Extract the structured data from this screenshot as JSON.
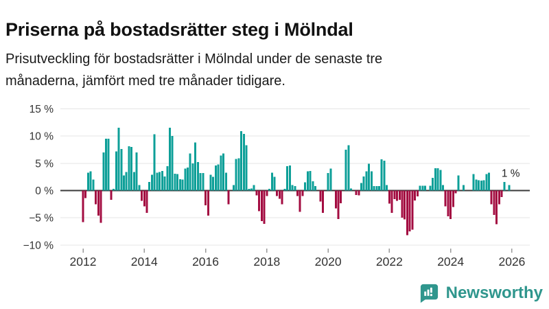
{
  "header": {
    "title": "Priserna på bostadsrätter steg i Mölndal",
    "subtitle_line1": "Prisutveckling för bostadsrätter i Mölndal under de senaste tre",
    "subtitle_line2": "månaderna, jämfört med tre månader tidigare."
  },
  "chart_data": {
    "type": "bar",
    "unit": "%",
    "start_period": "2012-01",
    "frequency": "monthly",
    "ylim": [
      -10,
      15
    ],
    "grid": true,
    "y_ticks": [
      {
        "value": 15,
        "label": "15 %"
      },
      {
        "value": 10,
        "label": "10 %"
      },
      {
        "value": 5,
        "label": "5 %"
      },
      {
        "value": 0,
        "label": "0 %"
      },
      {
        "value": -5,
        "label": "−5 %"
      },
      {
        "value": -10,
        "label": "−10 %"
      }
    ],
    "x_ticks": [
      {
        "year": 2012,
        "label": "2012"
      },
      {
        "year": 2014,
        "label": "2014"
      },
      {
        "year": 2016,
        "label": "2016"
      },
      {
        "year": 2018,
        "label": "2018"
      },
      {
        "year": 2020,
        "label": "2020"
      },
      {
        "year": 2022,
        "label": "2022"
      },
      {
        "year": 2024,
        "label": "2024"
      },
      {
        "year": 2026,
        "label": "2026"
      }
    ],
    "values": [
      -5.8,
      -1.4,
      3.3,
      3.5,
      2.0,
      -2.5,
      -4.6,
      -5.9,
      7.0,
      9.5,
      9.5,
      -1.7,
      0.3,
      7.2,
      11.5,
      7.6,
      2.8,
      3.4,
      8.1,
      8.0,
      3.4,
      7.0,
      1.0,
      -1.9,
      -2.9,
      -4.1,
      1.6,
      2.9,
      10.3,
      3.3,
      3.4,
      3.6,
      2.6,
      4.5,
      11.5,
      10.0,
      3.1,
      3.0,
      2.1,
      2.0,
      4.0,
      4.2,
      6.8,
      5.0,
      8.8,
      5.2,
      3.2,
      3.2,
      -2.7,
      -4.6,
      2.9,
      2.5,
      4.6,
      4.8,
      6.4,
      6.8,
      3.3,
      -2.5,
      0,
      1.0,
      5.8,
      5.9,
      10.9,
      10.4,
      8.3,
      0.3,
      0.4,
      1.0,
      -0.9,
      -3.8,
      -5.6,
      -6.1,
      -1.0,
      0.3,
      3.3,
      2.5,
      -1.0,
      -1.5,
      -2.5,
      0.3,
      4.5,
      4.6,
      1.0,
      0.8,
      -1.0,
      -3.9,
      -1.0,
      1.5,
      3.5,
      3.6,
      1.7,
      0.8,
      0,
      -2.0,
      -4.1,
      0,
      3.2,
      4.0,
      0,
      -3.3,
      -5.2,
      -2.3,
      0,
      7.5,
      8.3,
      0.4,
      0,
      -0.8,
      -0.9,
      1.4,
      2.6,
      3.5,
      4.9,
      3.5,
      0.8,
      0.8,
      0.8,
      5.7,
      5.5,
      1.0,
      -2.4,
      -4.1,
      -1.6,
      -1.9,
      -1.7,
      -5.0,
      -5.3,
      -8.2,
      -7.5,
      -7.2,
      -1.8,
      -1.1,
      0.9,
      0.9,
      0.9,
      0,
      0.9,
      2.3,
      4.1,
      4.1,
      3.8,
      1.0,
      -2.9,
      -4.7,
      -5.2,
      -3.0,
      -0.5,
      2.8,
      0,
      1.0,
      0,
      0,
      0,
      3.0,
      2.0,
      1.9,
      1.8,
      1.9,
      3.0,
      3.3,
      -2.5,
      -4.5,
      -6.2,
      -2.5,
      -1.2,
      1.6,
      0,
      1.0
    ],
    "annotation": {
      "text": "1 %"
    },
    "colors": {
      "positive": "#0D9F98",
      "negative": "#A30C41",
      "zero_line": "#3A3A3A",
      "gridline": "#E4E4E4",
      "tick": "#999999",
      "axis_text": "#333333"
    }
  },
  "branding": {
    "logo_text": "Newsworthy",
    "logo_color": "#2F968D"
  }
}
